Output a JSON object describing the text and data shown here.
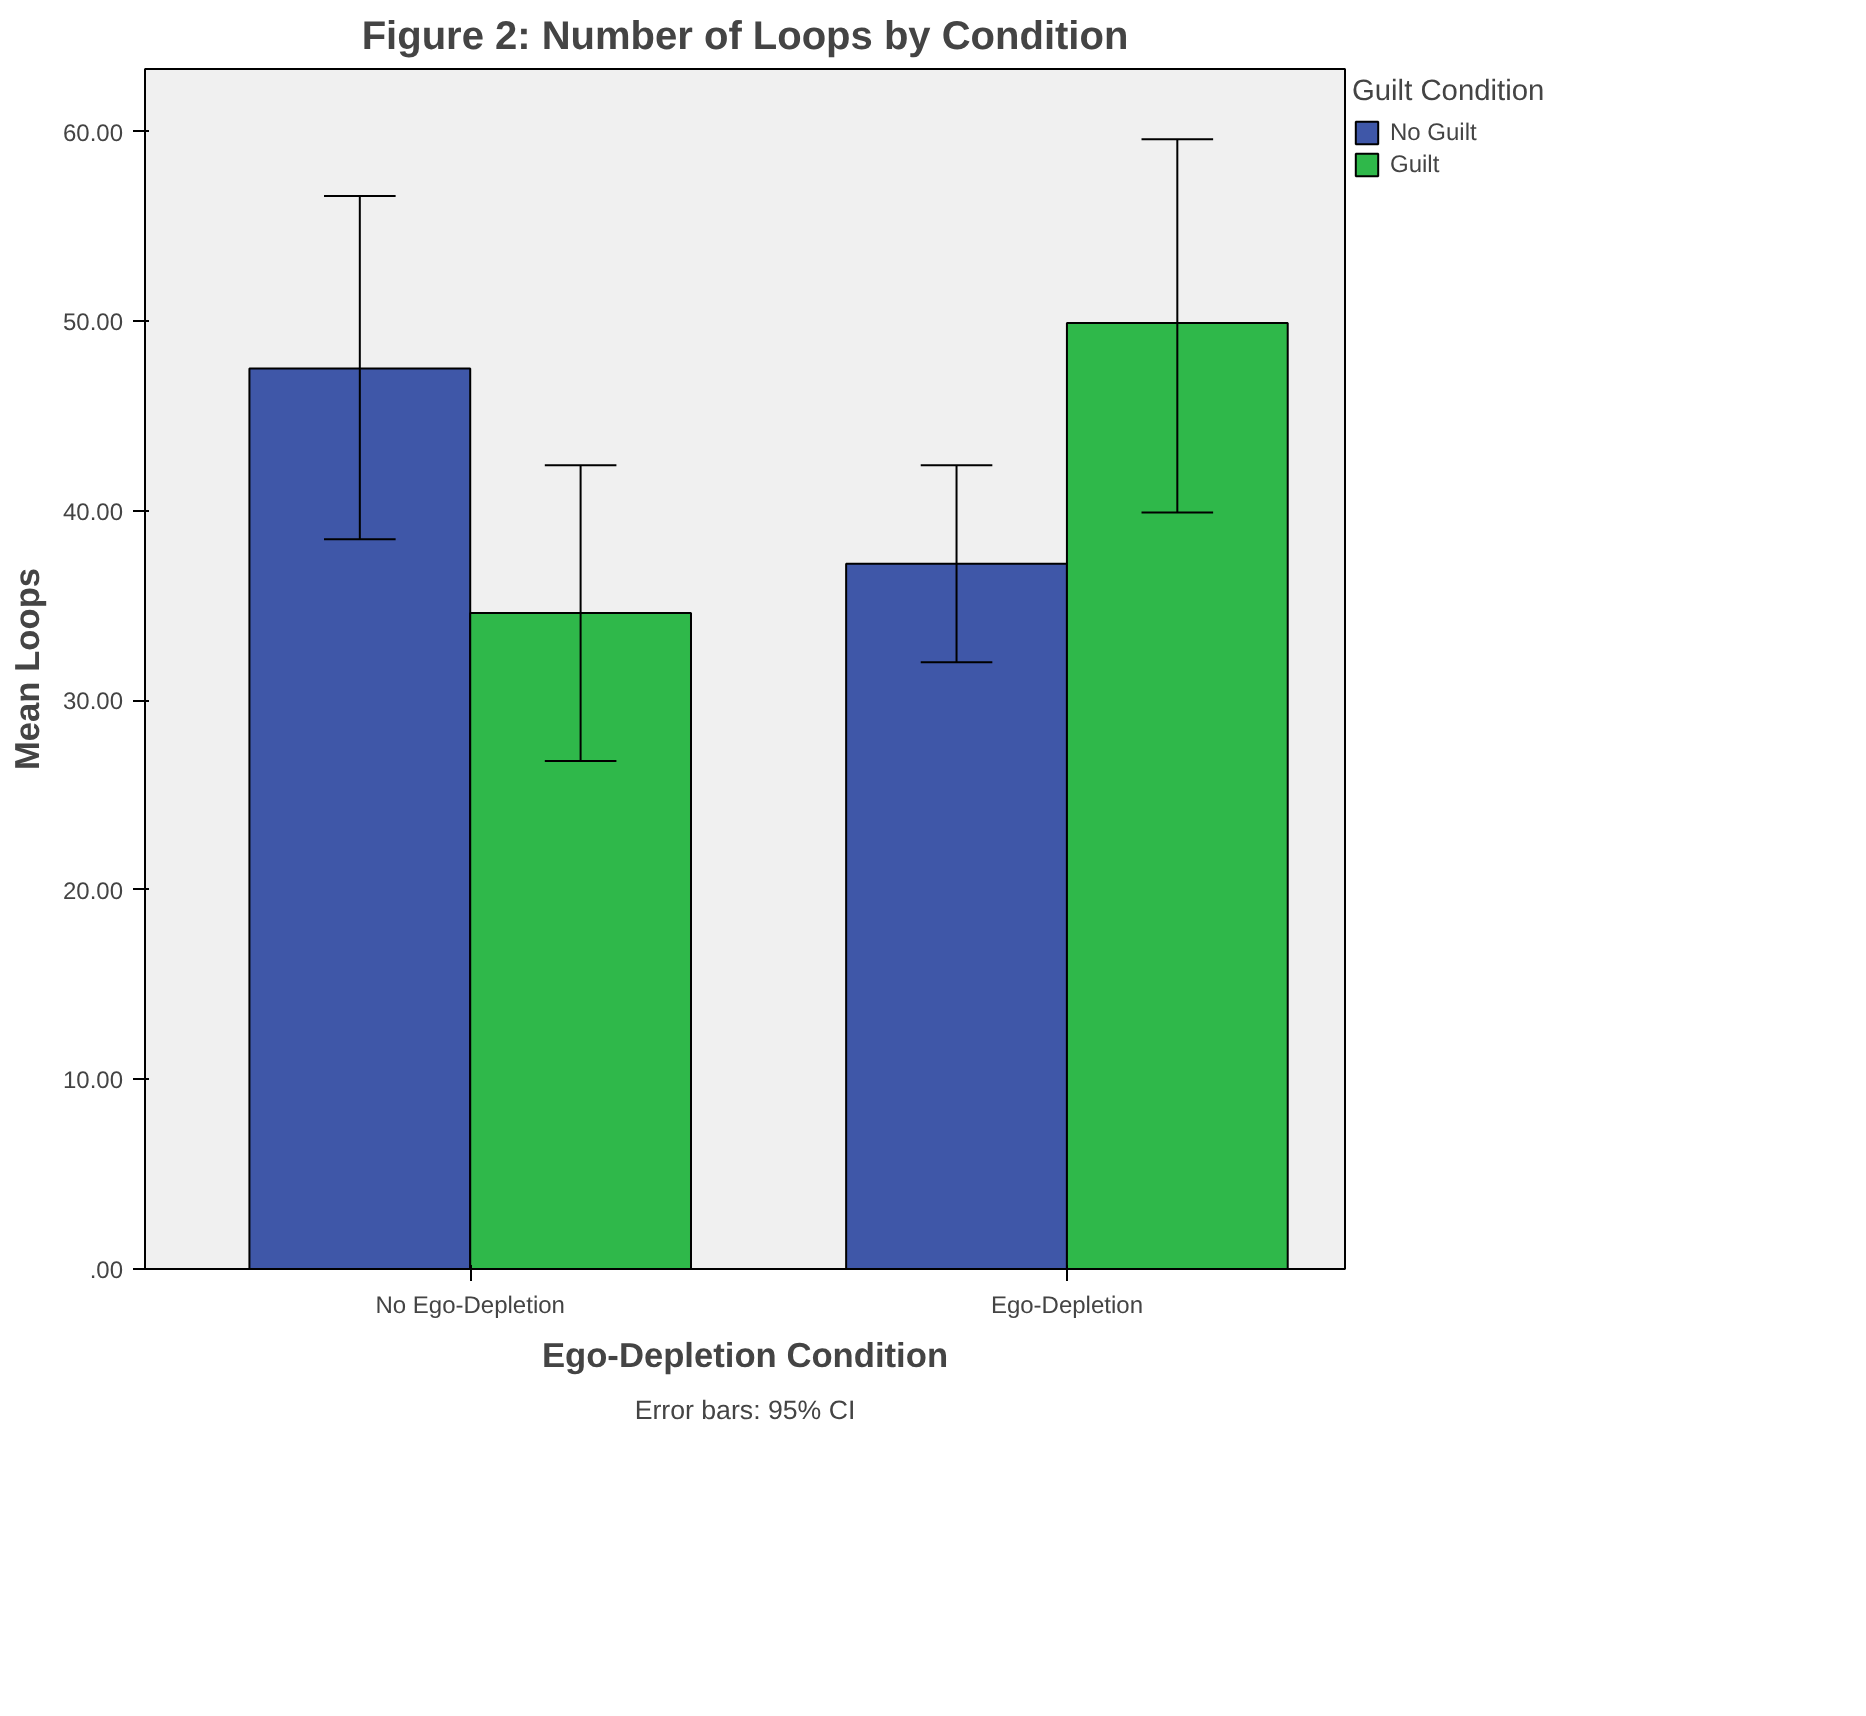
{
  "chart_data": {
    "type": "bar",
    "title": "Figure 2: Number of Loops by Condition",
    "xlabel": "Ego-Depletion Condition",
    "ylabel": "Mean Loops",
    "legend_title": "Guilt Condition",
    "categories": [
      "No Ego-Depletion",
      "Ego-Depletion"
    ],
    "series": [
      {
        "name": "No Guilt",
        "color": "#3f57a8",
        "values": [
          47.5,
          37.2
        ],
        "errors": [
          [
            38.5,
            56.6
          ],
          [
            32.0,
            42.4
          ]
        ]
      },
      {
        "name": "Guilt",
        "color": "#2fb84a",
        "values": [
          34.6,
          49.9
        ],
        "errors": [
          [
            26.8,
            42.4
          ],
          [
            39.9,
            59.6
          ]
        ]
      }
    ],
    "ylim": [
      0,
      63.3
    ],
    "yticks": [
      {
        "value": 0,
        "label": ".00"
      },
      {
        "value": 10,
        "label": "10.00"
      },
      {
        "value": 20,
        "label": "20.00"
      },
      {
        "value": 30,
        "label": "30.00"
      },
      {
        "value": 40,
        "label": "40.00"
      },
      {
        "value": 50,
        "label": "50.00"
      },
      {
        "value": 60,
        "label": "60.00"
      }
    ],
    "annotations": [
      "Error bars: 95% CI"
    ],
    "legend": "right",
    "grid": false
  }
}
